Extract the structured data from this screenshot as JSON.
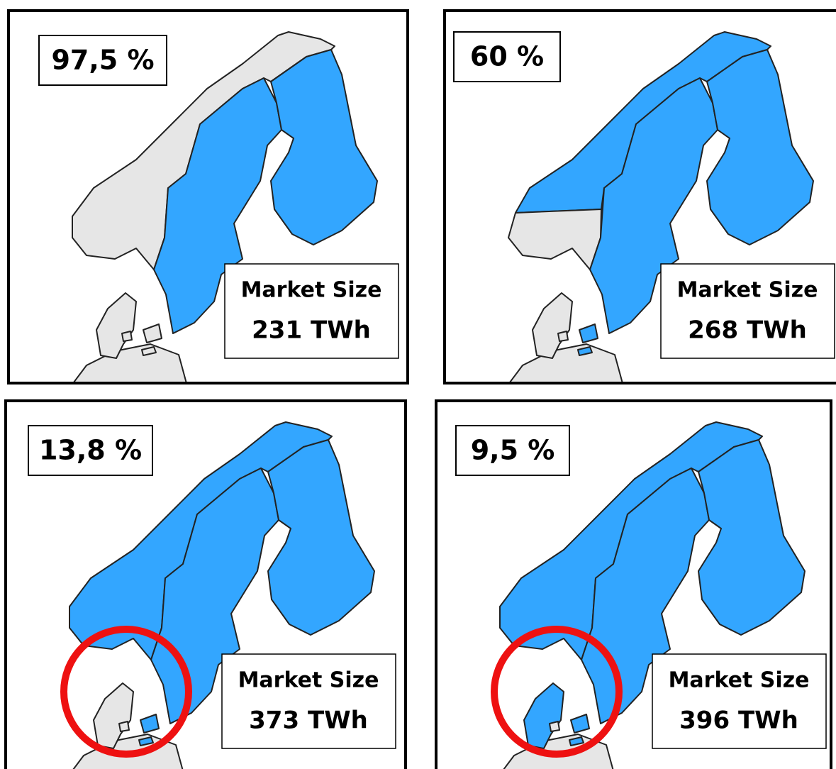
{
  "panels": [
    {
      "percent": "97,5 %",
      "market_label": "Market Size",
      "market_value": "231 TWh"
    },
    {
      "percent": "60 %",
      "market_label": "Market Size",
      "market_value": "268 TWh"
    },
    {
      "percent": "13,8 %",
      "market_label": "Market Size",
      "market_value": "373 TWh"
    },
    {
      "percent": "9,5 %",
      "market_label": "Market Size",
      "market_value": "396 TWh"
    }
  ]
}
